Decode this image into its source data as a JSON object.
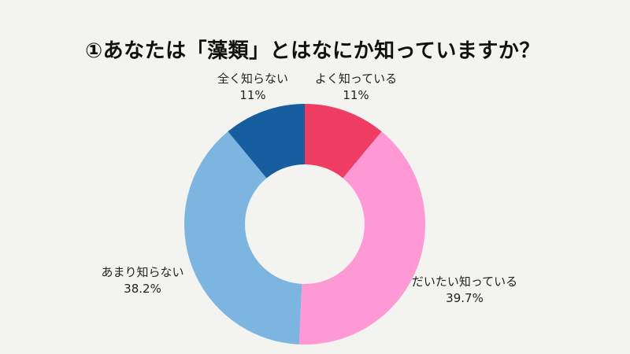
{
  "title": "①あなたは「藻類」とはなにか知っていますか？",
  "chart_data": {
    "type": "pie",
    "subtype": "donut",
    "title": "①あなたは「藻類」とはなにか知っていますか？",
    "categories": [
      "よく知っている",
      "だいたい知っている",
      "あまり知らない",
      "全く知らない"
    ],
    "values": [
      11,
      39.7,
      38.2,
      11
    ],
    "value_labels": [
      "11%",
      "39.7%",
      "38.2%",
      "11%"
    ],
    "colors": [
      "#ef3c62",
      "#ff99d6",
      "#7db5e1",
      "#175ea0"
    ],
    "start_angle": "12 o'clock",
    "direction": "clockwise",
    "legend": "none (labels outside slices)"
  },
  "labels": [
    {
      "name": "よく知っている",
      "value": "11%"
    },
    {
      "name": "だいたい知っている",
      "value": "39.7%"
    },
    {
      "name": "あまり知らない",
      "value": "38.2%"
    },
    {
      "name": "全く知らない",
      "value": "11%"
    }
  ]
}
